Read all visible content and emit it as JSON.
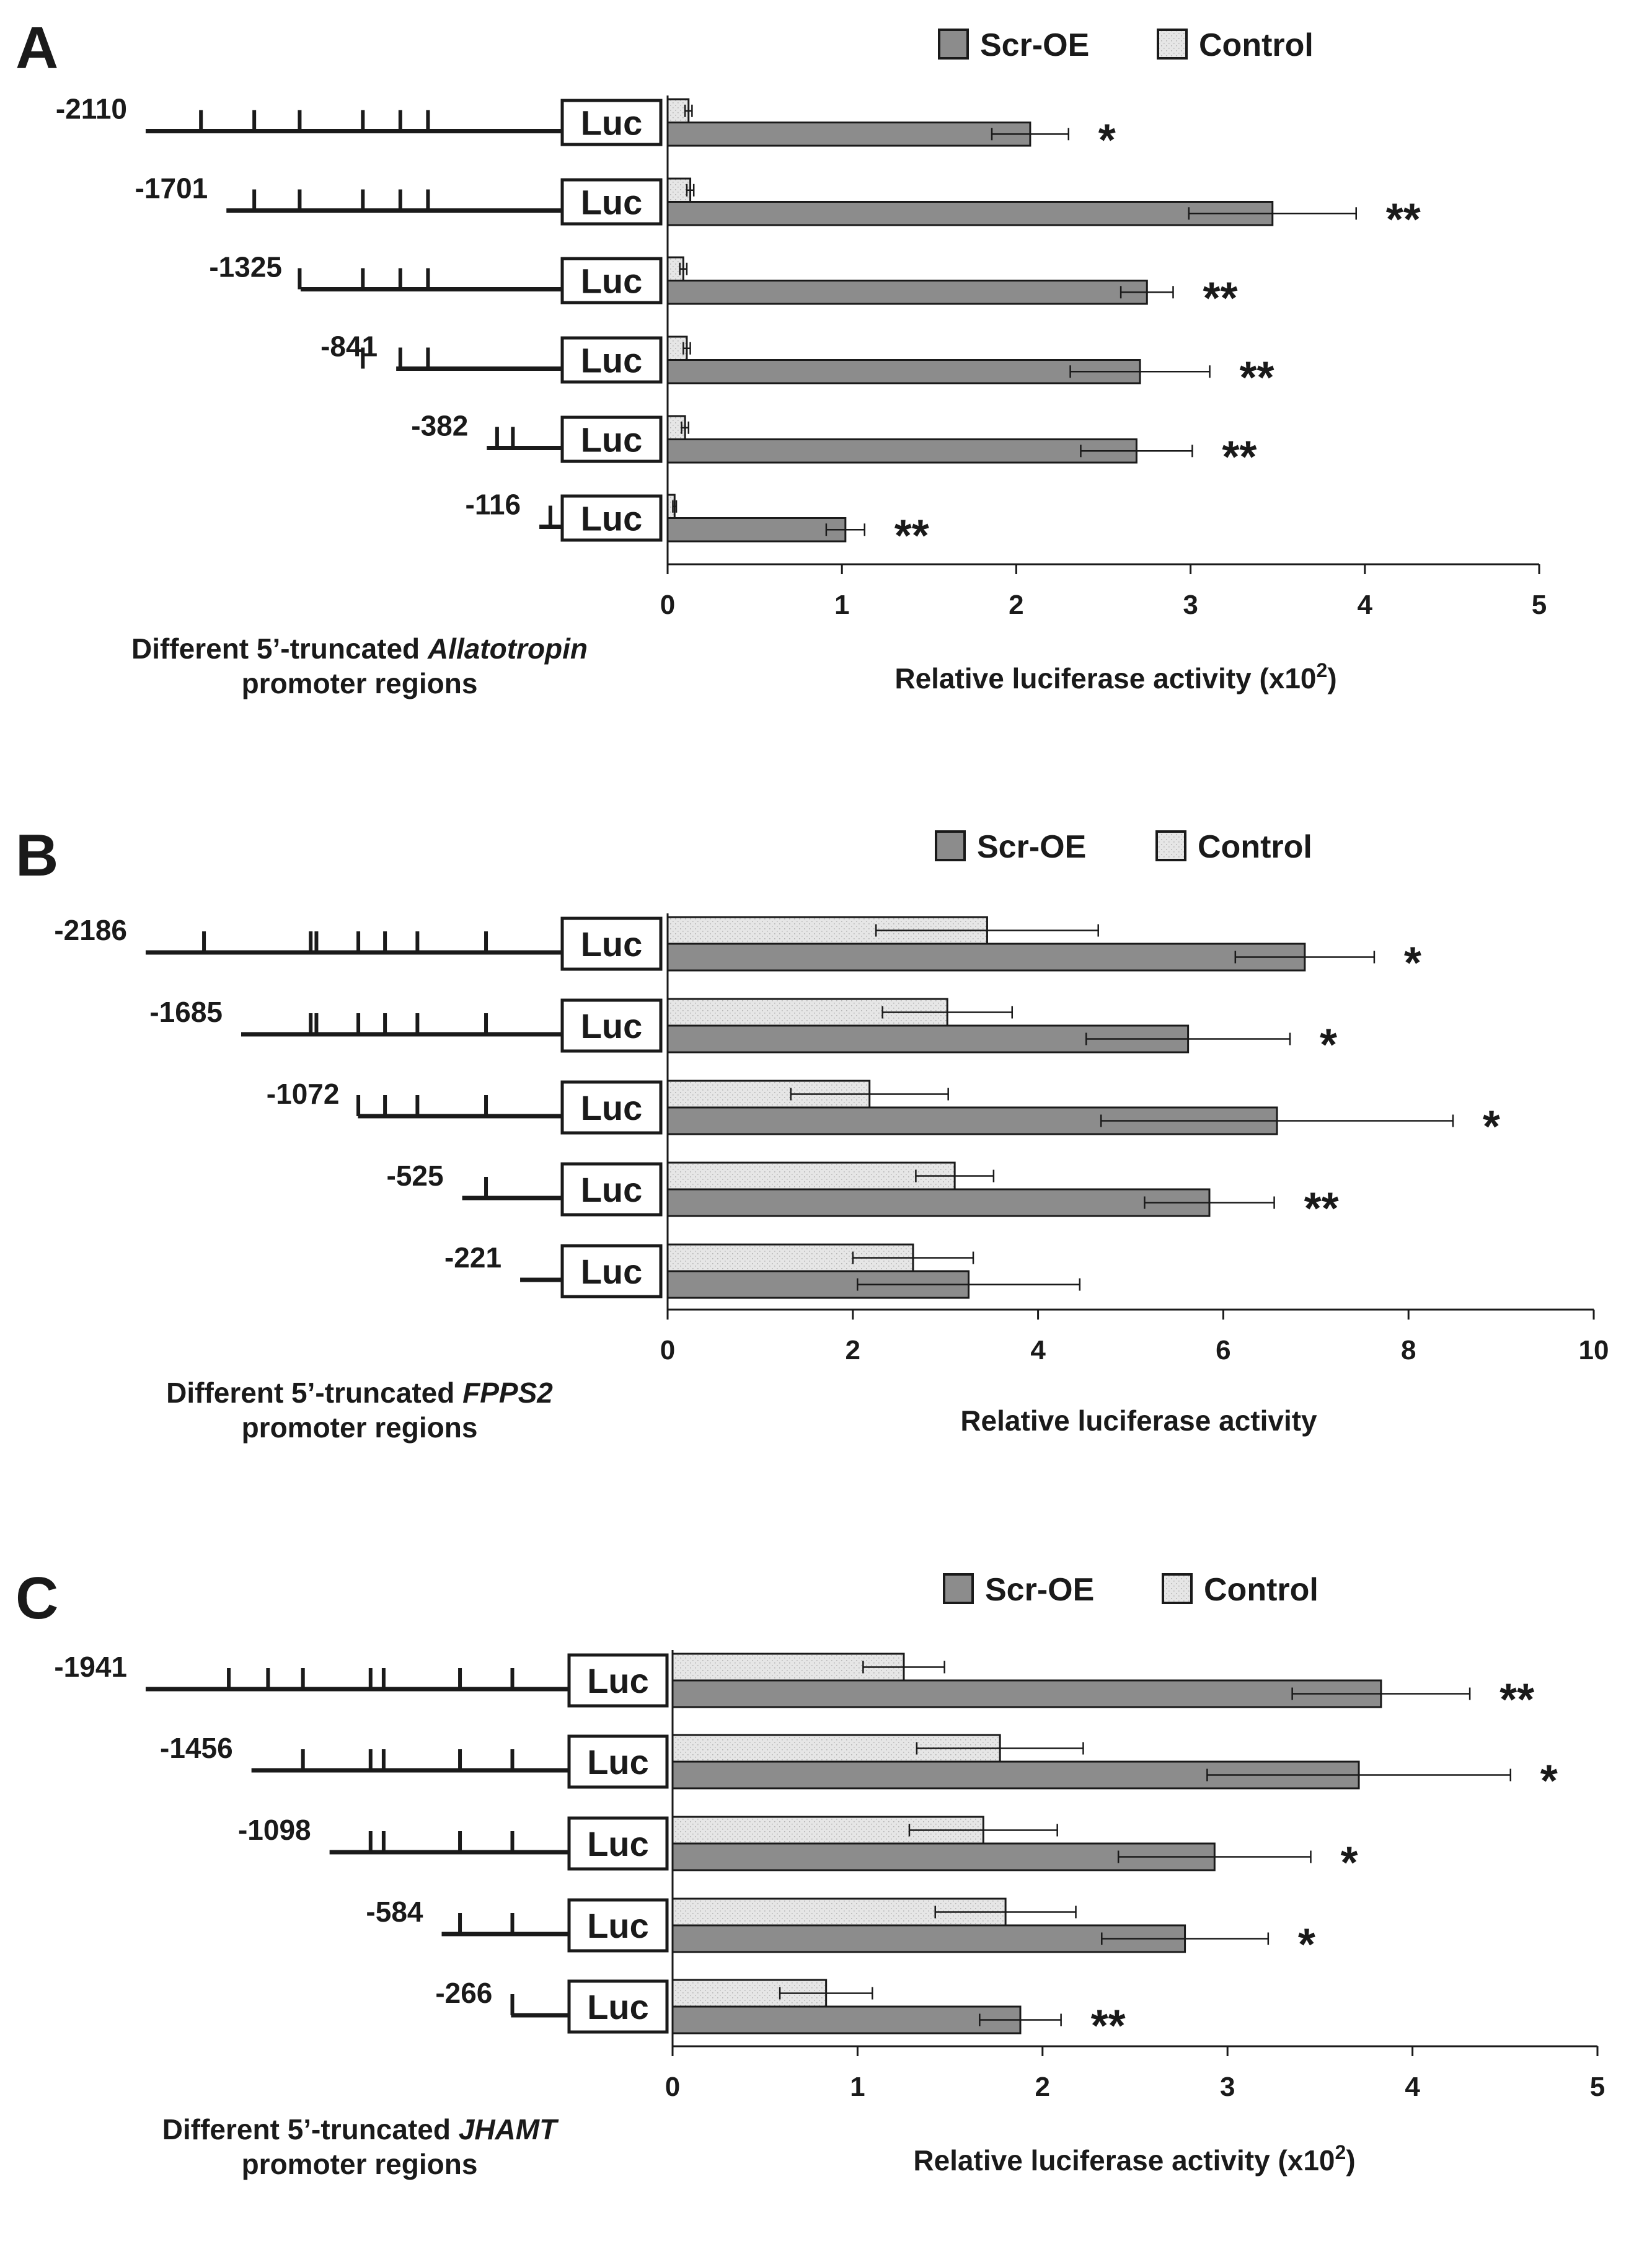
{
  "chart_data": [
    {
      "type": "bar",
      "panel": "A",
      "orientation": "horizontal",
      "categories": [
        "-2110",
        "-1701",
        "-1325",
        "-841",
        "-382",
        "-116"
      ],
      "series": [
        {
          "name": "Control",
          "values": [
            0.12,
            0.13,
            0.09,
            0.11,
            0.1,
            0.04
          ],
          "errors": [
            0.02,
            0.02,
            0.02,
            0.02,
            0.02,
            0.01
          ]
        },
        {
          "name": "Scr-OE",
          "values": [
            2.08,
            3.47,
            2.75,
            2.71,
            2.69,
            1.02
          ],
          "errors": [
            0.22,
            0.48,
            0.15,
            0.4,
            0.32,
            0.11
          ]
        }
      ],
      "significance": [
        "*",
        "**",
        "**",
        "**",
        "**",
        "**"
      ],
      "promoter_ticks": [
        [
          -1830,
          -1560,
          -1330,
          -1010,
          -820,
          -680
        ],
        [
          -1560,
          -1330,
          -1010,
          -820,
          -680
        ],
        [
          -1330,
          -1010,
          -820,
          -680
        ],
        [
          -1010,
          -820,
          -680
        ],
        [
          -330,
          -250
        ],
        [
          -60
        ]
      ],
      "xlim": [
        0,
        5
      ],
      "xticks": [
        0,
        1,
        2,
        3,
        4,
        5
      ],
      "xlabel_main": "Relative luciferase activity (x10",
      "xlabel_exp": "2",
      "xlabel_end": ")",
      "promoter_label_prefix": "Different 5’-truncated ",
      "promoter_gene": "Allatotropin",
      "promoter_label_line2": "promoter regions",
      "legend_position": "top-right"
    },
    {
      "type": "bar",
      "panel": "B",
      "orientation": "horizontal",
      "categories": [
        "-2186",
        "-1685",
        "-1072",
        "-525",
        "-221"
      ],
      "series": [
        {
          "name": "Control",
          "values": [
            3.45,
            3.02,
            2.18,
            3.1,
            2.65
          ],
          "errors": [
            1.2,
            0.7,
            0.85,
            0.42,
            0.65
          ]
        },
        {
          "name": "Scr-OE",
          "values": [
            6.88,
            5.62,
            6.58,
            5.85,
            3.25
          ],
          "errors": [
            0.75,
            1.1,
            1.9,
            0.7,
            1.2
          ]
        }
      ],
      "significance": [
        "*",
        "*",
        "*",
        "**",
        ""
      ],
      "promoter_ticks": [
        [
          -1880,
          -1320,
          -1290,
          -1070,
          -930,
          -760,
          -400
        ],
        [
          -1320,
          -1290,
          -1070,
          -930,
          -760,
          -400
        ],
        [
          -1070,
          -930,
          -760,
          -400
        ],
        [
          -400
        ],
        []
      ],
      "xlim": [
        0,
        10
      ],
      "xticks": [
        0,
        2,
        4,
        6,
        8,
        10
      ],
      "xlabel_main": "Relative luciferase activity",
      "xlabel_exp": "",
      "xlabel_end": "",
      "promoter_label_prefix": "Different 5’-truncated ",
      "promoter_gene": "FPPS2",
      "promoter_label_line2": "promoter regions",
      "legend_position": "top-right"
    },
    {
      "type": "bar",
      "panel": "C",
      "orientation": "horizontal",
      "categories": [
        "-1941",
        "-1456",
        "-1098",
        "-584",
        "-266"
      ],
      "series": [
        {
          "name": "Control",
          "values": [
            1.25,
            1.77,
            1.68,
            1.8,
            0.83
          ],
          "errors": [
            0.22,
            0.45,
            0.4,
            0.38,
            0.25
          ]
        },
        {
          "name": "Scr-OE",
          "values": [
            3.83,
            3.71,
            2.93,
            2.77,
            1.88
          ],
          "errors": [
            0.48,
            0.82,
            0.52,
            0.45,
            0.22
          ]
        }
      ],
      "significance": [
        "**",
        "*",
        "*",
        "*",
        "**"
      ],
      "promoter_ticks": [
        [
          -1560,
          -1380,
          -1220,
          -910,
          -850,
          -500,
          -260
        ],
        [
          -1220,
          -910,
          -850,
          -500,
          -260
        ],
        [
          -910,
          -850,
          -500,
          -260
        ],
        [
          -500,
          -260
        ],
        [
          -260
        ]
      ],
      "xlim": [
        0,
        5
      ],
      "xticks": [
        0,
        1,
        2,
        3,
        4,
        5
      ],
      "xlabel_main": "Relative luciferase activity (x10",
      "xlabel_exp": "2",
      "xlabel_end": ")",
      "promoter_label_prefix": "Different 5’-truncated ",
      "promoter_gene": "JHAMT",
      "promoter_label_line2": "promoter regions",
      "legend_position": "top-right"
    }
  ],
  "luc_label": "Luc",
  "colors": {
    "scr_oe_fill": "#8c8c8c",
    "control_fill": "#e6e6e6",
    "line": "#1a1a1a"
  }
}
